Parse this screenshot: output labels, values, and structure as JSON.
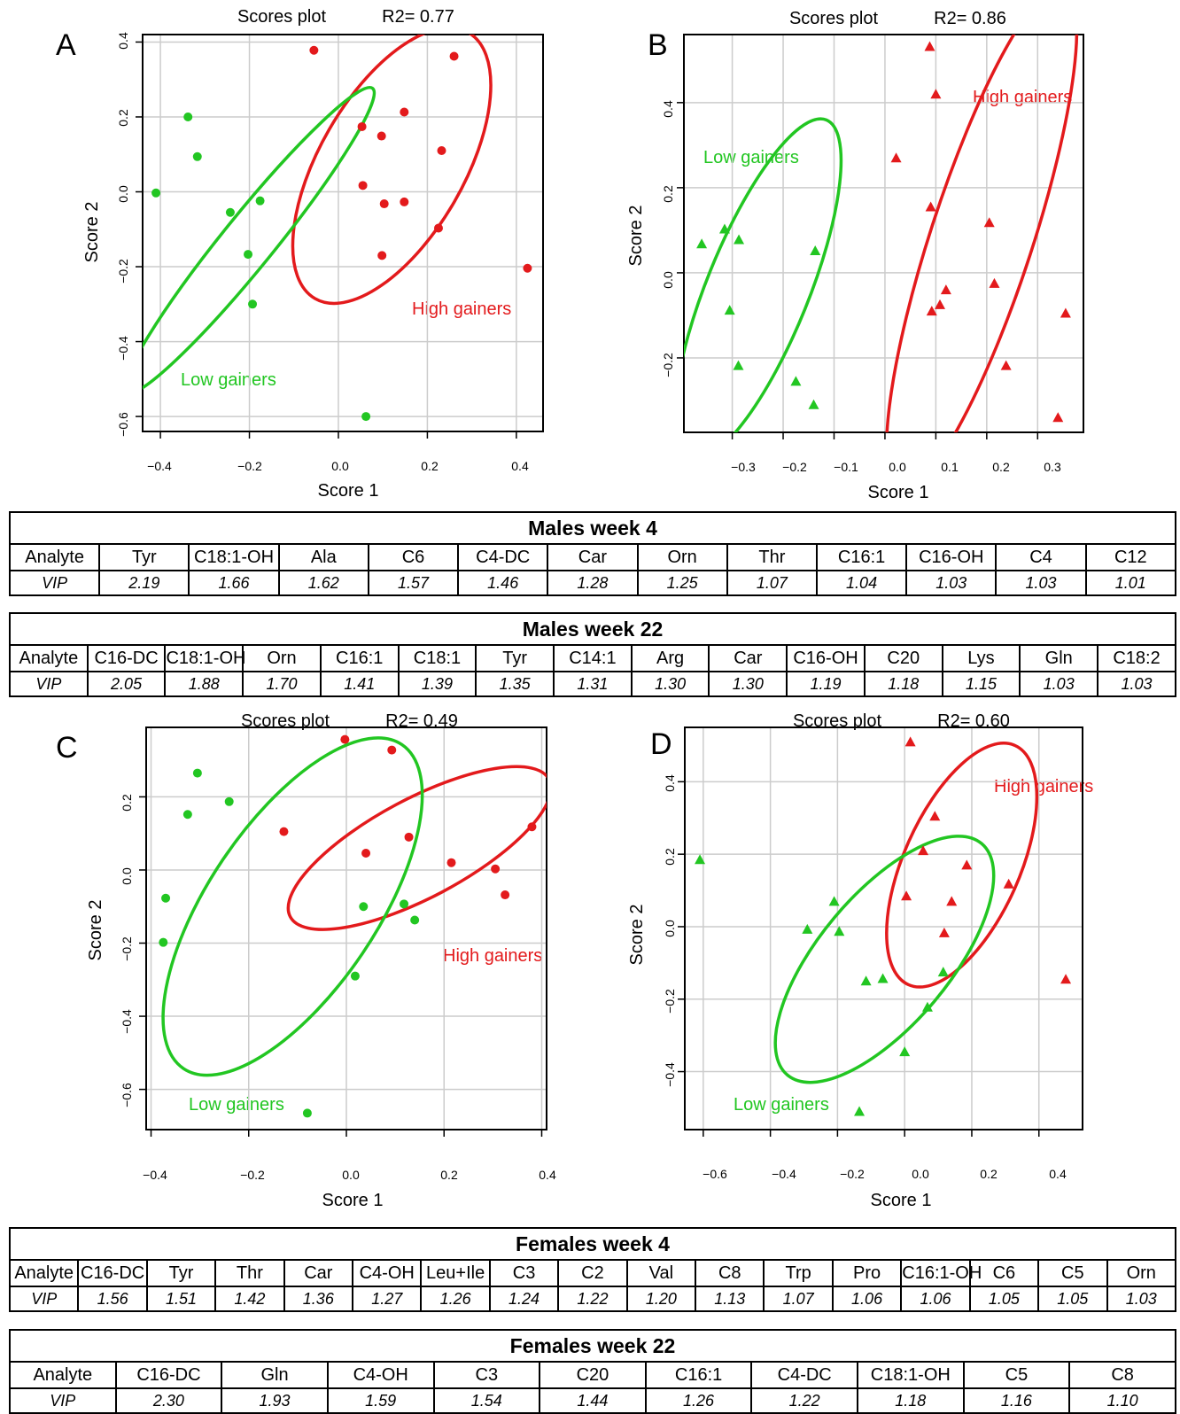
{
  "panels": [
    {
      "letter": "A",
      "title": "Scores plot",
      "r2": "R2= 0.77",
      "xlabel": "Score 1",
      "ylabel": "Score 2",
      "marker": "circle",
      "xticks": [
        "−0.4",
        "−0.2",
        "0.0",
        "0.2",
        "0.4"
      ],
      "yticks": [
        "−0.6",
        "−0.4",
        "−0.2",
        "0.0",
        "0.2",
        "0.4"
      ],
      "labels": {
        "high": "High gainers",
        "low": "Low gainers"
      }
    },
    {
      "letter": "B",
      "title": "Scores plot",
      "r2": "R2= 0.86",
      "xlabel": "Score 1",
      "ylabel": "Score 2",
      "marker": "triangle",
      "xticks": [
        "−0.3",
        "−0.2",
        "−0.1",
        "0.0",
        "0.1",
        "0.2",
        "0.3"
      ],
      "yticks": [
        "−0.2",
        "0.0",
        "0.2",
        "0.4"
      ],
      "labels": {
        "high": "High gainers",
        "low": "Low gainers"
      }
    },
    {
      "letter": "C",
      "title": "Scores plot",
      "r2": "R2= 0.49",
      "xlabel": "Score 1",
      "ylabel": "Score 2",
      "marker": "circle",
      "xticks": [
        "−0.4",
        "−0.2",
        "0.0",
        "0.2",
        "0.4"
      ],
      "yticks": [
        "−0.6",
        "−0.4",
        "−0.2",
        "0.0",
        "0.2"
      ],
      "labels": {
        "high": "High gainers",
        "low": "Low gainers"
      }
    },
    {
      "letter": "D",
      "title": "Scores plot",
      "r2": "R2= 0.60",
      "xlabel": "Score 1",
      "ylabel": "Score 2",
      "marker": "triangle",
      "xticks": [
        "−0.6",
        "−0.4",
        "−0.2",
        "0.0",
        "0.2",
        "0.4"
      ],
      "yticks": [
        "−0.4",
        "−0.2",
        "0.0",
        "0.2",
        "0.4"
      ],
      "labels": {
        "high": "High gainers",
        "low": "Low gainers"
      }
    }
  ],
  "tables": [
    {
      "title": "Males week 4",
      "row_label_analyte": "Analyte",
      "row_label_vip": "VIP",
      "analytes": [
        "Tyr",
        "C18:1-OH",
        "Ala",
        "C6",
        "C4-DC",
        "Car",
        "Orn",
        "Thr",
        "C16:1",
        "C16-OH",
        "C4",
        "C12"
      ],
      "vip": [
        "2.19",
        "1.66",
        "1.62",
        "1.57",
        "1.46",
        "1.28",
        "1.25",
        "1.07",
        "1.04",
        "1.03",
        "1.03",
        "1.01"
      ]
    },
    {
      "title": "Males week 22",
      "row_label_analyte": "Analyte",
      "row_label_vip": "VIP",
      "analytes": [
        "C16-DC",
        "C18:1-OH",
        "Orn",
        "C16:1",
        "C18:1",
        "Tyr",
        "C14:1",
        "Arg",
        "Car",
        "C16-OH",
        "C20",
        "Lys",
        "Gln",
        "C18:2"
      ],
      "vip": [
        "2.05",
        "1.88",
        "1.70",
        "1.41",
        "1.39",
        "1.35",
        "1.31",
        "1.30",
        "1.30",
        "1.19",
        "1.18",
        "1.15",
        "1.03",
        "1.03"
      ]
    },
    {
      "title": "Females week 4",
      "row_label_analyte": "Analyte",
      "row_label_vip": "VIP",
      "analytes": [
        "C16-DC",
        "Tyr",
        "Thr",
        "Car",
        "C4-OH",
        "Leu+Ile",
        "C3",
        "C2",
        "Val",
        "C8",
        "Trp",
        "Pro",
        "C16:1-OH",
        "C6",
        "C5",
        "Orn"
      ],
      "vip": [
        "1.56",
        "1.51",
        "1.42",
        "1.36",
        "1.27",
        "1.26",
        "1.24",
        "1.22",
        "1.20",
        "1.13",
        "1.07",
        "1.06",
        "1.06",
        "1.05",
        "1.05",
        "1.03"
      ]
    },
    {
      "title": "Females week 22",
      "row_label_analyte": "Analyte",
      "row_label_vip": "VIP",
      "analytes": [
        "C16-DC",
        "Gln",
        "C4-OH",
        "C3",
        "C20",
        "C16:1",
        "C4-DC",
        "C18:1-OH",
        "C5",
        "C8"
      ],
      "vip": [
        "2.30",
        "1.93",
        "1.59",
        "1.54",
        "1.44",
        "1.26",
        "1.22",
        "1.18",
        "1.16",
        "1.10"
      ]
    }
  ],
  "colors": {
    "high": "#e31a1c",
    "low": "#22c622",
    "grid": "#cccccc",
    "axis": "#000000"
  },
  "chart_data": [
    {
      "type": "scatter",
      "panel": "A",
      "xlim": [
        -0.44,
        0.46
      ],
      "ylim": [
        -0.64,
        0.42
      ],
      "grid": true,
      "series": [
        {
          "name": "High gainers",
          "points": [
            [
              -0.055,
              0.378
            ],
            [
              0.26,
              0.362
            ],
            [
              0.148,
              0.213
            ],
            [
              0.053,
              0.174
            ],
            [
              0.097,
              0.149
            ],
            [
              0.232,
              0.11
            ],
            [
              0.055,
              0.017
            ],
            [
              0.103,
              -0.032
            ],
            [
              0.148,
              -0.027
            ],
            [
              0.225,
              -0.097
            ],
            [
              0.098,
              -0.17
            ],
            [
              0.425,
              -0.204
            ]
          ]
        },
        {
          "name": "Low gainers",
          "points": [
            [
              -0.338,
              0.2
            ],
            [
              -0.317,
              0.094
            ],
            [
              -0.41,
              -0.003
            ],
            [
              -0.243,
              -0.055
            ],
            [
              -0.176,
              -0.024
            ],
            [
              -0.203,
              -0.167
            ],
            [
              -0.193,
              -0.3
            ],
            [
              0.062,
              -0.6
            ]
          ]
        }
      ]
    },
    {
      "type": "scatter",
      "panel": "B",
      "xlim": [
        -0.395,
        0.39
      ],
      "ylim": [
        -0.375,
        0.56
      ],
      "grid": true,
      "series": [
        {
          "name": "High gainers",
          "points": [
            [
              0.088,
              0.532
            ],
            [
              0.1,
              0.42
            ],
            [
              0.022,
              0.27
            ],
            [
              0.09,
              0.155
            ],
            [
              0.205,
              0.118
            ],
            [
              0.215,
              -0.025
            ],
            [
              0.12,
              -0.04
            ],
            [
              0.108,
              -0.075
            ],
            [
              0.092,
              -0.09
            ],
            [
              0.355,
              -0.095
            ],
            [
              0.238,
              -0.218
            ],
            [
              0.34,
              -0.34
            ]
          ]
        },
        {
          "name": "Low gainers",
          "points": [
            [
              -0.36,
              0.068
            ],
            [
              -0.315,
              0.103
            ],
            [
              -0.287,
              0.078
            ],
            [
              -0.137,
              0.052
            ],
            [
              -0.305,
              -0.088
            ],
            [
              -0.288,
              -0.218
            ],
            [
              -0.175,
              -0.255
            ],
            [
              -0.14,
              -0.31
            ]
          ]
        }
      ]
    },
    {
      "type": "scatter",
      "panel": "C",
      "xlim": [
        -0.41,
        0.41
      ],
      "ylim": [
        -0.71,
        0.39
      ],
      "grid": true,
      "series": [
        {
          "name": "High gainers",
          "points": [
            [
              -0.003,
              0.357
            ],
            [
              0.093,
              0.328
            ],
            [
              -0.128,
              0.105
            ],
            [
              0.04,
              0.046
            ],
            [
              0.128,
              0.09
            ],
            [
              0.215,
              0.02
            ],
            [
              0.305,
              0.003
            ],
            [
              0.38,
              0.118
            ],
            [
              0.325,
              -0.068
            ]
          ]
        },
        {
          "name": "Low gainers",
          "points": [
            [
              -0.305,
              0.265
            ],
            [
              -0.325,
              0.152
            ],
            [
              -0.24,
              0.187
            ],
            [
              -0.37,
              -0.077
            ],
            [
              -0.375,
              -0.198
            ],
            [
              0.035,
              -0.1
            ],
            [
              0.118,
              -0.093
            ],
            [
              0.14,
              -0.137
            ],
            [
              0.018,
              -0.29
            ],
            [
              -0.08,
              -0.665
            ]
          ]
        }
      ]
    },
    {
      "type": "scatter",
      "panel": "D",
      "xlim": [
        -0.655,
        0.53
      ],
      "ylim": [
        -0.56,
        0.55
      ],
      "grid": true,
      "series": [
        {
          "name": "High gainers",
          "points": [
            [
              0.017,
              0.51
            ],
            [
              0.09,
              0.305
            ],
            [
              0.055,
              0.21
            ],
            [
              0.185,
              0.17
            ],
            [
              0.31,
              0.118
            ],
            [
              0.005,
              0.085
            ],
            [
              0.14,
              0.07
            ],
            [
              0.118,
              -0.017
            ],
            [
              0.48,
              -0.145
            ]
          ]
        },
        {
          "name": "Low gainers",
          "points": [
            [
              -0.61,
              0.185
            ],
            [
              -0.21,
              0.07
            ],
            [
              -0.29,
              -0.007
            ],
            [
              -0.195,
              -0.013
            ],
            [
              0.115,
              -0.125
            ],
            [
              -0.065,
              -0.143
            ],
            [
              -0.115,
              -0.15
            ],
            [
              0.068,
              -0.222
            ],
            [
              0.0,
              -0.345
            ],
            [
              -0.135,
              -0.51
            ]
          ]
        }
      ]
    }
  ]
}
